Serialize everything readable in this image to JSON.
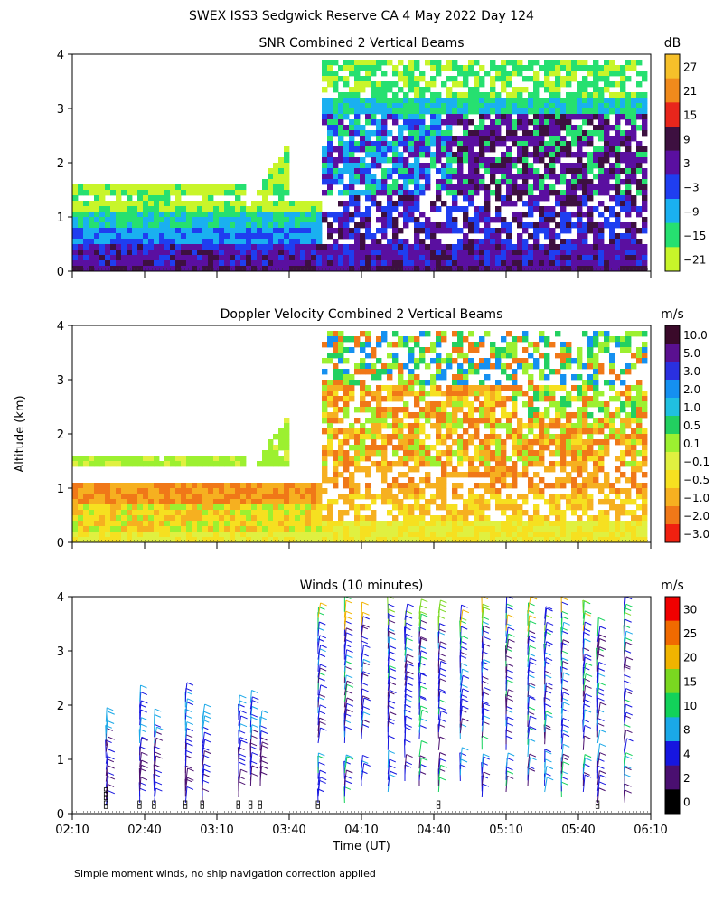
{
  "title": "SWEX ISS3 Sedgwick Reserve CA    4 May 2022 Day 124",
  "ylabel": "Altitude (km)",
  "xlabel": "Time (UT)",
  "footnote": "Simple moment winds, no ship navigation correction applied",
  "x_ticks": [
    "02:10",
    "02:40",
    "03:10",
    "03:40",
    "04:10",
    "04:40",
    "05:10",
    "05:40",
    "06:10"
  ],
  "y_ticks": [
    "0",
    "1",
    "2",
    "3",
    "4"
  ],
  "chart_data": [
    {
      "type": "heatmap",
      "title": "SNR Combined 2 Vertical Beams",
      "unit": "dB",
      "xlim": [
        "02:10",
        "06:10"
      ],
      "ylim": [
        0,
        4
      ],
      "colorbar": {
        "levels": [
          "27",
          "21",
          "15",
          "9",
          "3",
          "−3",
          "−9",
          "−15",
          "−21"
        ],
        "colors": [
          "#f6c02a",
          "#f08a1c",
          "#e8261c",
          "#3d1040",
          "#5a0fa0",
          "#1f3ef0",
          "#1ab0f0",
          "#26e070",
          "#c8f52a"
        ]
      },
      "grid": false
    },
    {
      "type": "heatmap",
      "title": "Doppler Velocity Combined 2 Vertical Beams",
      "unit": "m/s",
      "xlim": [
        "02:10",
        "06:10"
      ],
      "ylim": [
        0,
        4
      ],
      "colorbar": {
        "levels": [
          "10.0",
          "5.0",
          "3.0",
          "2.0",
          "1.0",
          "0.5",
          "0.1",
          "−0.1",
          "−0.5",
          "−1.0",
          "−2.0",
          "−3.0"
        ],
        "colors": [
          "#3a0a2a",
          "#5a1090",
          "#2a30e0",
          "#1590f0",
          "#20c0e0",
          "#22d060",
          "#9cf030",
          "#e0f040",
          "#f6e020",
          "#f6b020",
          "#f07818",
          "#f02010"
        ]
      },
      "grid": false
    },
    {
      "type": "scatter",
      "title": "Winds (10 minutes)",
      "unit": "m/s",
      "xlim": [
        "02:10",
        "06:10"
      ],
      "ylim": [
        0,
        4
      ],
      "colorbar": {
        "levels": [
          "30",
          "25",
          "20",
          "15",
          "10",
          "8",
          "4",
          "2",
          "0"
        ],
        "colors": [
          "#f00000",
          "#f06a00",
          "#f0b400",
          "#7ad820",
          "#12d25a",
          "#1aa8e8",
          "#1616e0",
          "#4a0f70",
          "#000000"
        ]
      },
      "grid": false
    }
  ]
}
